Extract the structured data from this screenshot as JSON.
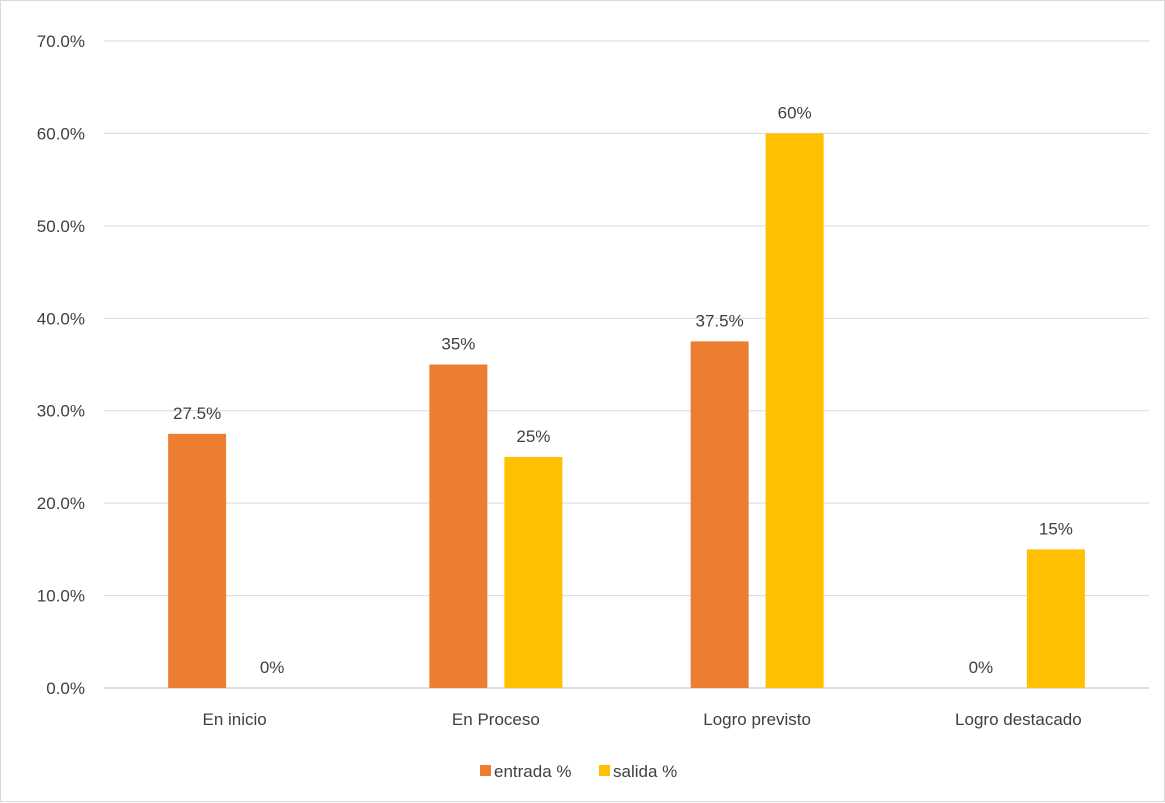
{
  "chart_data": {
    "type": "bar",
    "categories": [
      "En inicio",
      "En Proceso",
      "Logro previsto",
      "Logro destacado"
    ],
    "series": [
      {
        "name": "entrada %",
        "values": [
          27.5,
          35,
          37.5,
          0
        ],
        "labels": [
          "27.5%",
          "35%",
          "37.5%",
          "0%"
        ],
        "color": "#ED7D31"
      },
      {
        "name": "salida %",
        "values": [
          0,
          25,
          60,
          15
        ],
        "labels": [
          "0%",
          "25%",
          "60%",
          "15%"
        ],
        "color": "#FFC000"
      }
    ],
    "ylim": [
      0,
      70
    ],
    "yticks": [
      "0.0%",
      "10.0%",
      "20.0%",
      "30.0%",
      "40.0%",
      "50.0%",
      "60.0%",
      "70.0%"
    ],
    "grid": true,
    "legend": "bottom",
    "title": "",
    "xlabel": "",
    "ylabel": ""
  }
}
